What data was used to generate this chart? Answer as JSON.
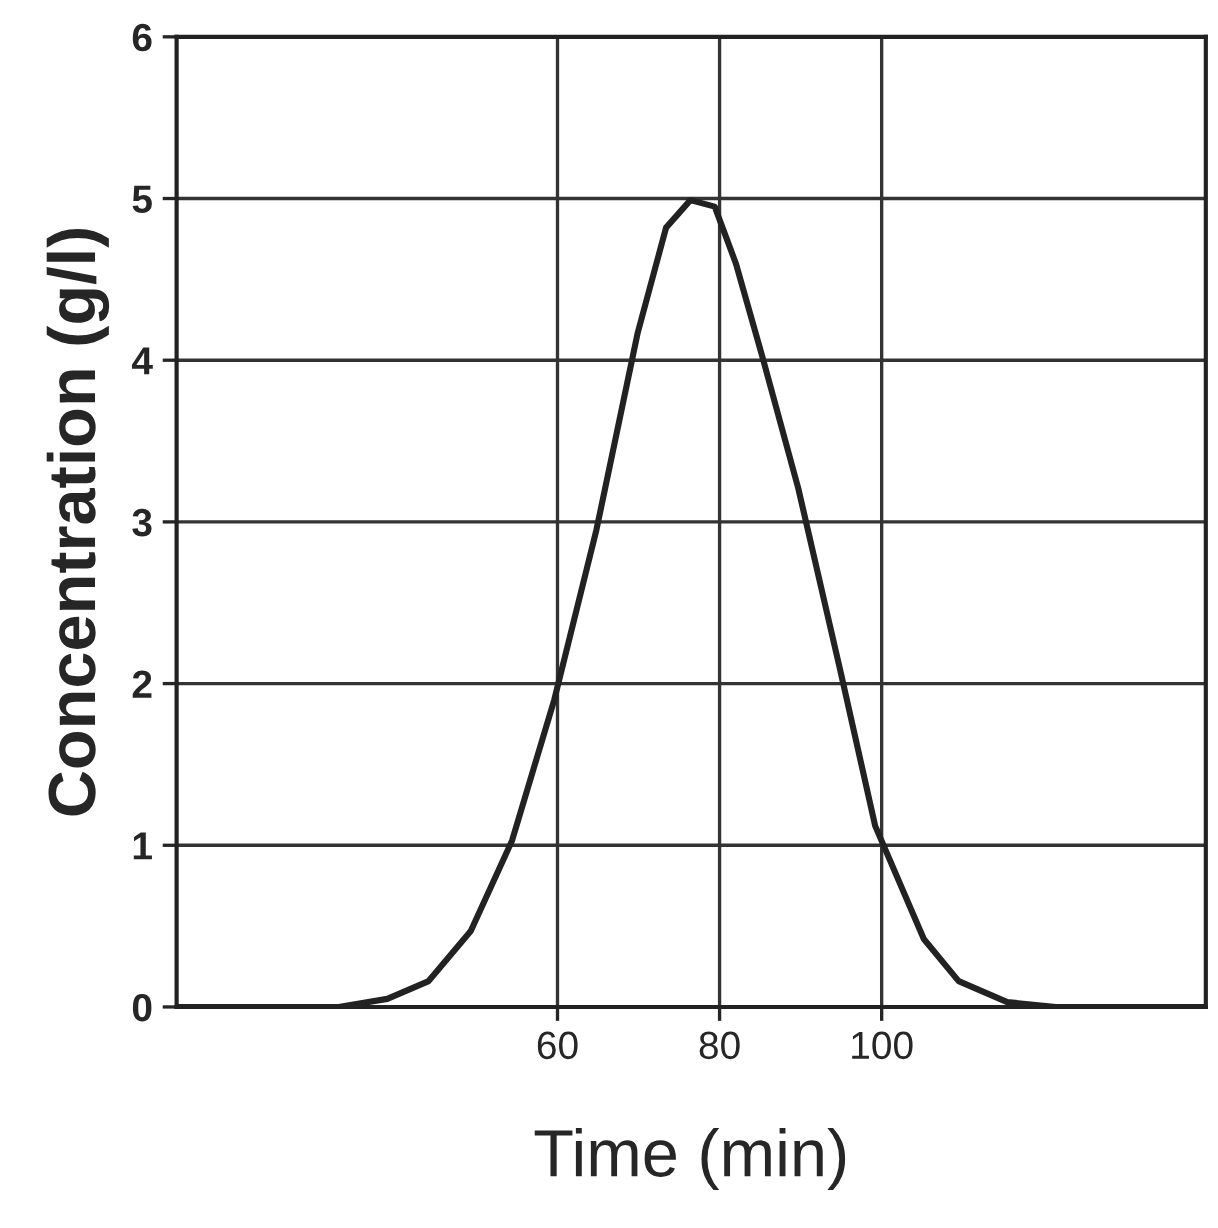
{
  "chart_data": {
    "type": "line",
    "xlabel": "Time (min)",
    "ylabel": "Concentration (g/l)",
    "xlim": [
      13,
      140
    ],
    "ylim": [
      0,
      6
    ],
    "xticks": [
      60,
      80,
      100
    ],
    "yticks": [
      0,
      1,
      2,
      3,
      4,
      5,
      6
    ],
    "grid": true,
    "marker": "none",
    "line_style": "solid",
    "series": [
      {
        "color": "#222222",
        "x": [
          13,
          33,
          39,
          44.1,
          49.3,
          54.4,
          59.6,
          64.8,
          69.9,
          73.4,
          76.4,
          79.4,
          82.0,
          85.4,
          89.7,
          94.9,
          99.2,
          105.2,
          109.5,
          115.5,
          121.5,
          140
        ],
        "values": [
          0,
          0,
          0.05,
          0.16,
          0.47,
          1.03,
          1.9,
          2.95,
          4.17,
          4.82,
          4.99,
          4.95,
          4.6,
          4.0,
          3.21,
          2.08,
          1.12,
          0.42,
          0.16,
          0.03,
          0,
          0
        ]
      }
    ]
  }
}
